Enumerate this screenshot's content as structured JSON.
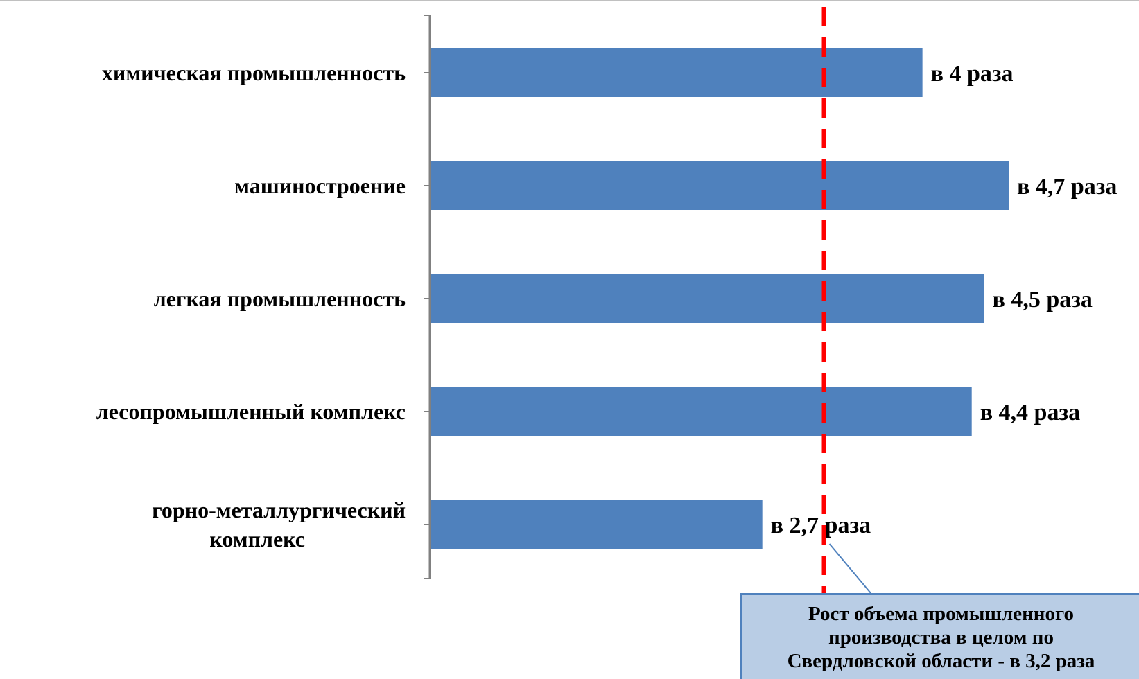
{
  "chart_data": {
    "type": "bar",
    "orientation": "horizontal",
    "categories": [
      "химическая промышленность",
      "машиностроение",
      "легкая промышленность",
      "лесопромышленный комплекс",
      "горно-металлургический комплекс"
    ],
    "category_lines": [
      [
        "химическая промышленность"
      ],
      [
        "машиностроение"
      ],
      [
        "легкая промышленность"
      ],
      [
        "лесопромышленный комплекс"
      ],
      [
        "горно-металлургический",
        "комплекс"
      ]
    ],
    "values": [
      4,
      4.7,
      4.5,
      4.4,
      2.7
    ],
    "data_labels": [
      "в 4 раза",
      "в 4,7 раза",
      "в 4,5 раза",
      "в 4,4 раза",
      "в 2,7 раза"
    ],
    "reference_line": {
      "value": 3.2,
      "label": "Рост объема промышленного\nпроизводства в целом по\nСвердловской области -  в 3,2 раза",
      "color": "#ff0000",
      "style": "dashed"
    },
    "xlim": [
      0,
      4.7
    ],
    "bar_color": "#4f81bd",
    "axis_color": "#808080",
    "callout_fill": "#b9cde5",
    "grid": false,
    "legend": "none"
  }
}
